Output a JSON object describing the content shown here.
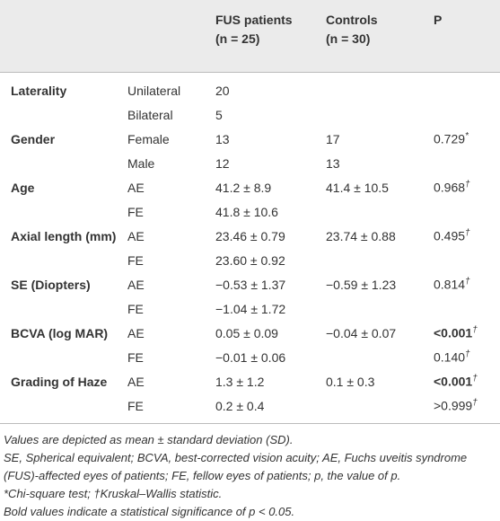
{
  "table": {
    "header": [
      [],
      [],
      [
        "FUS patients",
        "(n = 25)"
      ],
      [
        "Controls",
        "(n = 30)"
      ],
      [
        "P"
      ]
    ],
    "rows": [
      {
        "label": "Laterality",
        "sub": "Unilateral",
        "fus": "20"
      },
      {
        "sub": "Bilateral",
        "fus": "5"
      },
      {
        "label": "Gender",
        "sub": "Female",
        "fus": "13",
        "controls": "17",
        "p": "0.729",
        "p_mark": "*"
      },
      {
        "sub": "Male",
        "fus": "12",
        "controls": "13"
      },
      {
        "label": "Age",
        "sub": "AE",
        "fus": "41.2 ± 8.9",
        "controls": "41.4 ± 10.5",
        "p": "0.968",
        "p_mark": "†"
      },
      {
        "sub": "FE",
        "fus": "41.8 ± 10.6"
      },
      {
        "label": "Axial length (mm)",
        "sub": "AE",
        "fus": "23.46 ± 0.79",
        "controls": "23.74 ± 0.88",
        "p": "0.495",
        "p_mark": "†"
      },
      {
        "sub": "FE",
        "fus": "23.60 ± 0.92"
      },
      {
        "label": "SE (Diopters)",
        "sub": "AE",
        "fus": "−0.53 ± 1.37",
        "controls": "−0.59 ± 1.23",
        "p": "0.814",
        "p_mark": "†"
      },
      {
        "sub": "FE",
        "fus": "−1.04 ± 1.72"
      },
      {
        "label": "BCVA (log MAR)",
        "sub": "AE",
        "fus": "0.05 ± 0.09",
        "controls": "−0.04 ± 0.07",
        "p": "<0.001",
        "p_mark": "†",
        "p_bold": true
      },
      {
        "sub": "FE",
        "fus": "−0.01 ± 0.06",
        "p": "0.140",
        "p_mark": "†"
      },
      {
        "label": "Grading of Haze",
        "sub": "AE",
        "fus": "1.3 ± 1.2",
        "controls": "0.1 ± 0.3",
        "p": "<0.001",
        "p_mark": "†",
        "p_bold": true
      },
      {
        "sub": "FE",
        "fus": "0.2 ± 0.4",
        "p": ">0.999",
        "p_mark": "†"
      }
    ]
  },
  "footnotes": [
    "Values are depicted as mean ± standard deviation (SD).",
    "SE, Spherical equivalent; BCVA, best-corrected vision acuity; AE, Fuchs uveitis syndrome (FUS)-affected eyes of patients; FE, fellow eyes of patients; p, the value of p.",
    "*Chi-square test; †Kruskal–Wallis statistic.",
    "Bold values indicate a statistical significance of p < 0.05."
  ]
}
